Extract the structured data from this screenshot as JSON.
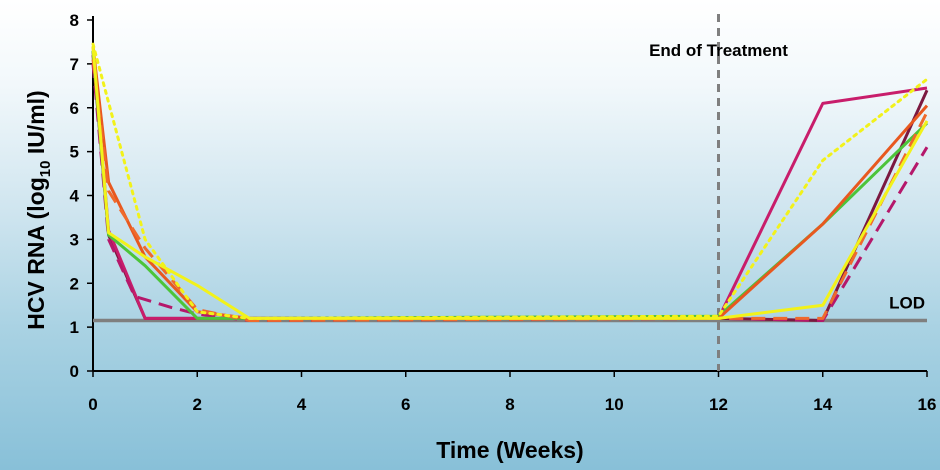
{
  "chart_data": {
    "type": "line",
    "title": "",
    "xlabel": "Time (Weeks)",
    "ylabel": {
      "prefix": "HCV RNA (log",
      "subscript": "10",
      "suffix": " IU/ml)"
    },
    "xlim": [
      0,
      16
    ],
    "ylim": [
      0,
      8
    ],
    "x_ticks": [
      "0",
      "2",
      "4",
      "6",
      "8",
      "10",
      "12",
      "14",
      "16"
    ],
    "y_ticks": [
      "0",
      "1",
      "2",
      "3",
      "4",
      "5",
      "6",
      "7",
      "8"
    ],
    "grid": false,
    "legend": "none",
    "reference_lines": [
      {
        "label": "LOD",
        "axis": "y",
        "value": 1.15,
        "color": "#7f7f7f",
        "style": "solid"
      },
      {
        "label": "End of Treatment",
        "axis": "x",
        "value": 12,
        "color": "#7f7f7f",
        "style": "dashed"
      }
    ],
    "series": [
      {
        "color": "#7b1840",
        "dash": "solid",
        "points": [
          [
            0,
            7.2
          ],
          [
            0.3,
            3.1
          ],
          [
            1,
            1.2
          ],
          [
            2,
            1.2
          ],
          [
            3,
            1.2
          ],
          [
            12,
            1.2
          ],
          [
            14,
            1.15
          ],
          [
            16,
            6.4
          ]
        ]
      },
      {
        "color": "#c81d6b",
        "dash": "solid",
        "points": [
          [
            0,
            7.3
          ],
          [
            0.3,
            3.2
          ],
          [
            1,
            1.2
          ],
          [
            2,
            1.2
          ],
          [
            3,
            1.2
          ],
          [
            12,
            1.2
          ],
          [
            14,
            6.1
          ],
          [
            16,
            6.45
          ]
        ]
      },
      {
        "color": "#b5186b",
        "dash": "dashed",
        "points": [
          [
            0,
            7.0
          ],
          [
            0.3,
            3.0
          ],
          [
            0.8,
            1.7
          ],
          [
            1.5,
            1.45
          ],
          [
            2,
            1.3
          ],
          [
            3,
            1.15
          ],
          [
            12,
            1.2
          ],
          [
            14,
            1.15
          ],
          [
            16,
            5.1
          ]
        ]
      },
      {
        "color": "#4cc43a",
        "dash": "solid",
        "points": [
          [
            0,
            7.3
          ],
          [
            0.3,
            3.1
          ],
          [
            1,
            2.4
          ],
          [
            2,
            1.2
          ],
          [
            3,
            1.2
          ],
          [
            12,
            1.25
          ],
          [
            14,
            3.35
          ],
          [
            16,
            5.65
          ]
        ]
      },
      {
        "color": "#e8581f",
        "dash": "solid",
        "points": [
          [
            0,
            7.4
          ],
          [
            0.3,
            4.3
          ],
          [
            1,
            2.6
          ],
          [
            2,
            1.35
          ],
          [
            3,
            1.2
          ],
          [
            12,
            1.2
          ],
          [
            14,
            3.35
          ],
          [
            16,
            6.05
          ]
        ]
      },
      {
        "color": "#ef6a2c",
        "dash": "dashed",
        "points": [
          [
            0,
            7.1
          ],
          [
            0.3,
            4.1
          ],
          [
            1,
            2.8
          ],
          [
            2,
            1.4
          ],
          [
            3,
            1.15
          ],
          [
            12,
            1.2
          ],
          [
            14,
            1.2
          ],
          [
            16,
            5.9
          ]
        ]
      },
      {
        "color": "#f2f21a",
        "dash": "solid",
        "points": [
          [
            0,
            7.4
          ],
          [
            0.3,
            3.15
          ],
          [
            1,
            2.6
          ],
          [
            2,
            1.95
          ],
          [
            3,
            1.2
          ],
          [
            12,
            1.2
          ],
          [
            14,
            1.5
          ],
          [
            16,
            5.7
          ]
        ]
      },
      {
        "color": "#f2f21a",
        "dash": "dotted",
        "points": [
          [
            0,
            7.45
          ],
          [
            1,
            3.0
          ],
          [
            2,
            1.35
          ],
          [
            3,
            1.2
          ],
          [
            12,
            1.25
          ],
          [
            14,
            4.8
          ],
          [
            16,
            6.65
          ]
        ]
      }
    ]
  }
}
